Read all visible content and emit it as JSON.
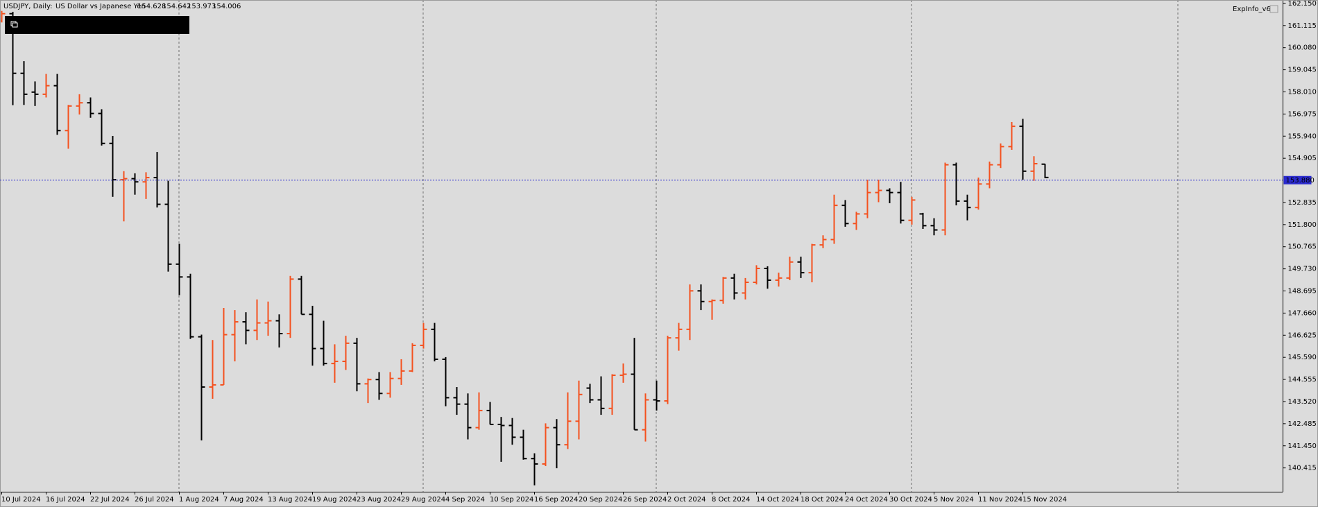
{
  "chart_data": {
    "type": "ohlc",
    "title": "USDJPY, Daily:",
    "subtitle": "US Dollar vs Japanese Yen",
    "indicator": "ExpInfo_v6",
    "up_color": "#f4511e",
    "down_color": "#000000",
    "current_price": {
      "value": 153.88,
      "label": "153.880"
    },
    "current_color": "#2a2acf",
    "ylim": [
      139.3,
      162.31
    ],
    "yticks": [
      {
        "value": 162.15,
        "label": "162.150"
      },
      161.115,
      {
        "value": 160.08,
        "label": "160.080"
      },
      159.045,
      {
        "value": 158.01,
        "label": "158.010"
      },
      156.975,
      {
        "value": 155.94,
        "label": "155.940"
      },
      154.905,
      152.835,
      {
        "value": 151.8,
        "label": "151.800"
      },
      150.765,
      {
        "value": 149.73,
        "label": "149.730"
      },
      148.695,
      {
        "value": 147.66,
        "label": "147.660"
      },
      146.625,
      {
        "value": 145.59,
        "label": "145.590"
      },
      144.555,
      {
        "value": 143.52,
        "label": "143.520"
      },
      142.485,
      {
        "value": 141.45,
        "label": "141.450"
      },
      140.415
    ],
    "categories": [
      "10 Jul 2024",
      null,
      null,
      null,
      "16 Jul 2024",
      null,
      null,
      null,
      "22 Jul 2024",
      null,
      null,
      null,
      "26 Jul 2024",
      null,
      null,
      null,
      "1 Aug 2024",
      null,
      null,
      null,
      "7 Aug 2024",
      null,
      null,
      null,
      "13 Aug 2024",
      null,
      null,
      null,
      "19 Aug 2024",
      null,
      null,
      null,
      "23 Aug 2024",
      null,
      null,
      null,
      "29 Aug 2024",
      null,
      null,
      null,
      "4 Sep 2024",
      null,
      null,
      null,
      "10 Sep 2024",
      null,
      null,
      null,
      "16 Sep 2024",
      null,
      null,
      null,
      "20 Sep 2024",
      null,
      null,
      null,
      "26 Sep 2024",
      null,
      null,
      null,
      "2 Oct 2024",
      null,
      null,
      null,
      "8 Oct 2024",
      null,
      null,
      null,
      "14 Oct 2024",
      null,
      null,
      null,
      "18 Oct 2024",
      null,
      null,
      null,
      "24 Oct 2024",
      null,
      null,
      null,
      "30 Oct 2024",
      null,
      null,
      null,
      "5 Nov 2024",
      null,
      null,
      null,
      "11 Nov 2024",
      null,
      null,
      null,
      "15 Nov 2024",
      null,
      null
    ],
    "open": [
      161.33,
      161.67,
      158.88,
      158,
      157.9,
      158.3,
      156.2,
      157.35,
      157.5,
      157,
      155.6,
      153.9,
      153.95,
      153.8,
      154,
      152.75,
      149.95,
      149.35,
      146.55,
      144.2,
      144.3,
      146.65,
      147.25,
      146.85,
      147.2,
      147.3,
      146.7,
      149.25,
      147.6,
      146,
      145.3,
      145.4,
      146.25,
      144.35,
      144.55,
      143.9,
      144.6,
      144.95,
      146.15,
      146.9,
      145.5,
      143.7,
      143.4,
      142.3,
      143.1,
      142.45,
      142.4,
      141.85,
      140.85,
      140.6,
      142.3,
      141.5,
      142.6,
      144.15,
      143.6,
      143.2,
      144.75,
      144.8,
      142.2,
      143.6,
      143.55,
      146.5,
      146.9,
      148.7,
      148.2,
      148.25,
      149.3,
      148.6,
      149.1,
      149.75,
      149.2,
      149.3,
      150.05,
      149.55,
      150.85,
      151.1,
      152.7,
      151.85,
      152.3,
      153.3,
      153.4,
      153.3,
      152,
      152.3,
      151.75,
      151.55,
      154.6,
      152.9,
      152.6,
      153.7,
      154.6,
      155.45,
      156.4,
      154.3,
      154.628
    ],
    "high": [
      161.8,
      161.76,
      159.45,
      158.5,
      158.85,
      158.85,
      157.4,
      157.9,
      157.75,
      157.2,
      155.95,
      154.3,
      154.2,
      154.25,
      155.2,
      153.85,
      150.9,
      149.5,
      146.65,
      146.4,
      147.9,
      147.8,
      147.7,
      148.3,
      148.2,
      147.6,
      149.4,
      149.4,
      148,
      147.3,
      146.2,
      146.6,
      146.5,
      144.6,
      144.9,
      144.9,
      145.5,
      146.25,
      147.2,
      147.2,
      145.6,
      144.2,
      143.9,
      143.95,
      143.5,
      142.8,
      142.75,
      142.2,
      141.1,
      142.5,
      142.7,
      143.95,
      144.5,
      144.35,
      144.7,
      144.8,
      145.3,
      146.5,
      143.9,
      144.5,
      146.6,
      147.2,
      149,
      149,
      148.3,
      149.35,
      149.5,
      149.3,
      149.9,
      149.85,
      149.55,
      150.3,
      150.3,
      150.9,
      151.3,
      153.2,
      152.95,
      152.4,
      153.9,
      153.9,
      153.5,
      153.8,
      153.1,
      152.35,
      152.1,
      154.7,
      154.7,
      153.2,
      154,
      154.75,
      155.6,
      156.6,
      156.75,
      155,
      154.642
    ],
    "low": [
      161.26,
      157.39,
      157.4,
      157.35,
      157.75,
      156,
      155.35,
      156.95,
      156.8,
      155.5,
      153.1,
      151.95,
      153.2,
      153,
      152.6,
      149.6,
      148.5,
      146.45,
      141.7,
      143.65,
      144.3,
      145.4,
      146.2,
      146.4,
      146.6,
      146.05,
      146.5,
      147.6,
      145.2,
      145.2,
      144.4,
      145,
      144,
      143.45,
      143.6,
      143.7,
      144.3,
      144.9,
      146,
      145.4,
      143.3,
      142.9,
      141.75,
      142.2,
      142.45,
      140.7,
      141.5,
      140.8,
      139.6,
      140.5,
      140.4,
      141.3,
      141.75,
      143.45,
      142.9,
      142.9,
      144.4,
      142.2,
      141.65,
      143.1,
      143.4,
      145.9,
      146.4,
      147.8,
      147.35,
      148.1,
      148.3,
      148.3,
      149,
      148.8,
      148.9,
      149.2,
      149.3,
      149.1,
      150.7,
      150.9,
      151.7,
      151.55,
      152.1,
      152.85,
      152.8,
      151.85,
      151.8,
      151.6,
      151.3,
      151.3,
      152.7,
      152,
      152.5,
      153.5,
      154.45,
      155.3,
      153.9,
      153.85,
      153.973
    ],
    "close": [
      161.67,
      158.88,
      157.9,
      157.9,
      158.3,
      156.2,
      157.35,
      157.5,
      157,
      155.6,
      153.9,
      153.95,
      153.8,
      154,
      152.75,
      149.95,
      149.35,
      146.55,
      144.2,
      144.3,
      146.65,
      147.25,
      146.85,
      147.2,
      147.3,
      146.7,
      149.25,
      147.6,
      146,
      145.3,
      145.4,
      146.25,
      144.35,
      144.55,
      143.9,
      144.6,
      144.95,
      146.15,
      146.9,
      145.5,
      143.7,
      143.4,
      142.3,
      143.1,
      142.45,
      142.4,
      141.85,
      140.85,
      140.6,
      142.3,
      141.5,
      142.6,
      143.85,
      143.6,
      143.2,
      144.75,
      144.8,
      142.2,
      143.6,
      143.55,
      146.5,
      146.9,
      148.7,
      148.2,
      148.25,
      149.3,
      148.6,
      149.1,
      149.75,
      149.2,
      149.3,
      150.05,
      149.55,
      150.85,
      151.1,
      152.7,
      151.85,
      152.3,
      153.3,
      153.4,
      153.3,
      152,
      152.95,
      151.75,
      151.55,
      154.6,
      152.9,
      152.6,
      153.7,
      154.6,
      155.45,
      156.4,
      154.3,
      154.65,
      154.006
    ]
  }
}
